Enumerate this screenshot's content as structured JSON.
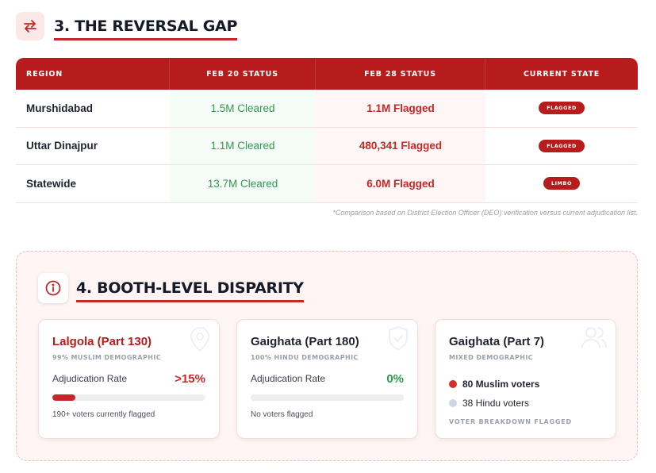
{
  "section3": {
    "title": "3. THE REVERSAL GAP",
    "icon": "swap-arrows-icon",
    "table": {
      "headers": [
        "REGION",
        "FEB 20 STATUS",
        "FEB 28 STATUS",
        "CURRENT STATE"
      ],
      "rows": [
        {
          "region": "Murshidabad",
          "feb20": "1.5M Cleared",
          "feb28": "1.1M Flagged",
          "state": "FLAGGED"
        },
        {
          "region": "Uttar Dinajpur",
          "feb20": "1.1M Cleared",
          "feb28": "480,341 Flagged",
          "state": "FLAGGED"
        },
        {
          "region": "Statewide",
          "feb20": "13.7M Cleared",
          "feb28": "6.0M Flagged",
          "state": "LIMBO"
        }
      ]
    },
    "footnote": "*Comparison based on District Election Officer (DEO) verification versus current adjudication list."
  },
  "section4": {
    "title": "4. BOOTH-LEVEL DISPARITY",
    "icon": "info-circle-icon",
    "cards": [
      {
        "title": "Lalgola (Part 130)",
        "subtitle": "99% MUSLIM DEMOGRAPHIC",
        "rate_label": "Adjudication Rate",
        "rate_value": ">15%",
        "rate_fraction": 0.15,
        "note": "190+ voters currently flagged",
        "icon": "location-pin-icon"
      },
      {
        "title": "Gaighata (Part 180)",
        "subtitle": "100% HINDU DEMOGRAPHIC",
        "rate_label": "Adjudication Rate",
        "rate_value": "0%",
        "rate_fraction": 0,
        "note": "No voters flagged",
        "icon": "shield-check-icon"
      },
      {
        "title": "Gaighata (Part 7)",
        "subtitle": "MIXED DEMOGRAPHIC",
        "voters": [
          "80 Muslim voters",
          "38 Hindu voters"
        ],
        "footer": "VOTER BREAKDOWN FLAGGED",
        "icon": "users-icon"
      }
    ]
  },
  "colors": {
    "accent": "#b71c1c",
    "green": "#2e9a4b",
    "red": "#c62828"
  }
}
